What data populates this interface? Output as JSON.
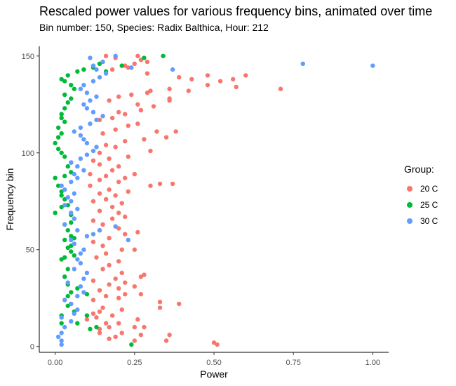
{
  "chart_data": {
    "type": "scatter",
    "title": "Rescaled power values for various frequency bins, animated over time",
    "subtitle": "Bin number: 150, Species: Radix Balthica, Hour: 212",
    "xlabel": "Power",
    "ylabel": "Frequency bin",
    "xlim": [
      -0.05,
      1.05
    ],
    "ylim": [
      -3,
      155
    ],
    "xticks": [
      "0.00",
      "0.25",
      "0.50",
      "0.75",
      "1.00"
    ],
    "yticks": [
      "0",
      "50",
      "100",
      "150"
    ],
    "grid": false,
    "legend": {
      "title": "Group:",
      "position": "right"
    },
    "series": [
      {
        "name": "20 C",
        "color": "#F8766D",
        "points": [
          [
            0.51,
            1
          ],
          [
            0.5,
            2
          ],
          [
            0.25,
            3
          ],
          [
            0.35,
            3
          ],
          [
            0.17,
            4
          ],
          [
            0.19,
            5
          ],
          [
            0.27,
            6
          ],
          [
            0.36,
            6
          ],
          [
            0.14,
            7
          ],
          [
            0.21,
            7
          ],
          [
            0.14,
            9
          ],
          [
            0.17,
            10
          ],
          [
            0.25,
            10
          ],
          [
            0.28,
            10
          ],
          [
            0.16,
            12
          ],
          [
            0.2,
            12
          ],
          [
            0.1,
            14
          ],
          [
            0.26,
            14
          ],
          [
            0.13,
            15
          ],
          [
            0.18,
            16
          ],
          [
            0.12,
            17
          ],
          [
            0.14,
            18
          ],
          [
            0.21,
            19
          ],
          [
            0.15,
            20
          ],
          [
            0.33,
            20
          ],
          [
            0.39,
            22
          ],
          [
            0.33,
            23
          ],
          [
            0.12,
            24
          ],
          [
            0.2,
            25
          ],
          [
            0.16,
            26
          ],
          [
            0.22,
            27
          ],
          [
            0.27,
            27
          ],
          [
            0.14,
            29
          ],
          [
            0.2,
            30
          ],
          [
            0.25,
            31
          ],
          [
            0.17,
            32
          ],
          [
            0.22,
            33
          ],
          [
            0.12,
            34
          ],
          [
            0.19,
            35
          ],
          [
            0.28,
            37
          ],
          [
            0.21,
            38
          ],
          [
            0.27,
            36
          ],
          [
            0.15,
            40
          ],
          [
            0.17,
            42
          ],
          [
            0.2,
            44
          ],
          [
            0.13,
            46
          ],
          [
            0.16,
            48
          ],
          [
            0.21,
            50
          ],
          [
            0.25,
            50
          ],
          [
            0.15,
            52
          ],
          [
            0.12,
            54
          ],
          [
            0.17,
            56
          ],
          [
            0.22,
            58
          ],
          [
            0.26,
            59
          ],
          [
            0.14,
            60
          ],
          [
            0.2,
            61
          ],
          [
            0.15,
            63
          ],
          [
            0.12,
            65
          ],
          [
            0.18,
            66
          ],
          [
            0.22,
            67
          ],
          [
            0.2,
            69
          ],
          [
            0.14,
            70
          ],
          [
            0.18,
            72
          ],
          [
            0.21,
            74
          ],
          [
            0.12,
            75
          ],
          [
            0.16,
            76
          ],
          [
            0.19,
            78
          ],
          [
            0.14,
            79
          ],
          [
            0.23,
            80
          ],
          [
            0.17,
            81
          ],
          [
            0.11,
            83
          ],
          [
            0.3,
            83
          ],
          [
            0.33,
            84
          ],
          [
            0.37,
            84
          ],
          [
            0.2,
            85
          ],
          [
            0.14,
            86
          ],
          [
            0.22,
            87
          ],
          [
            0.16,
            88
          ],
          [
            0.11,
            89
          ],
          [
            0.25,
            89
          ],
          [
            0.18,
            91
          ],
          [
            0.2,
            93
          ],
          [
            0.14,
            94
          ],
          [
            0.12,
            96
          ],
          [
            0.17,
            97
          ],
          [
            0.23,
            98
          ],
          [
            0.14,
            100
          ],
          [
            0.3,
            101
          ],
          [
            0.19,
            103
          ],
          [
            0.16,
            104
          ],
          [
            0.22,
            106
          ],
          [
            0.28,
            107
          ],
          [
            0.35,
            108
          ],
          [
            0.15,
            110
          ],
          [
            0.32,
            111
          ],
          [
            0.38,
            111
          ],
          [
            0.19,
            112
          ],
          [
            0.23,
            114
          ],
          [
            0.26,
            115
          ],
          [
            0.14,
            117
          ],
          [
            0.18,
            118
          ],
          [
            0.22,
            120
          ],
          [
            0.2,
            121
          ],
          [
            0.27,
            122
          ],
          [
            0.31,
            124
          ],
          [
            0.26,
            125
          ],
          [
            0.17,
            127
          ],
          [
            0.36,
            127
          ],
          [
            0.36,
            128
          ],
          [
            0.2,
            129
          ],
          [
            0.24,
            130
          ],
          [
            0.29,
            131
          ],
          [
            0.3,
            132
          ],
          [
            0.36,
            133
          ],
          [
            0.42,
            132
          ],
          [
            0.57,
            134
          ],
          [
            0.71,
            133
          ],
          [
            0.48,
            135
          ],
          [
            0.52,
            137
          ],
          [
            0.43,
            138
          ],
          [
            0.56,
            138
          ],
          [
            0.39,
            139
          ],
          [
            0.48,
            140
          ],
          [
            0.6,
            140
          ],
          [
            0.29,
            141
          ],
          [
            0.18,
            143
          ],
          [
            0.22,
            145
          ],
          [
            0.25,
            146
          ],
          [
            0.27,
            148
          ],
          [
            0.19,
            149
          ],
          [
            0.16,
            150
          ],
          [
            0.26,
            150
          ],
          [
            0.29,
            147
          ],
          [
            0.23,
            144
          ]
        ]
      },
      {
        "name": "25 C",
        "color": "#00BA38",
        "points": [
          [
            0.24,
            1
          ],
          [
            0.02,
            12
          ],
          [
            0.11,
            9
          ],
          [
            0.13,
            10
          ],
          [
            0.07,
            12
          ],
          [
            0.02,
            16
          ],
          [
            0.06,
            18
          ],
          [
            0.1,
            16
          ],
          [
            0.04,
            21
          ],
          [
            0.05,
            22
          ],
          [
            0.04,
            26
          ],
          [
            0.1,
            27
          ],
          [
            0.05,
            28
          ],
          [
            0.07,
            30
          ],
          [
            0.04,
            32
          ],
          [
            0.03,
            36
          ],
          [
            0.04,
            40
          ],
          [
            0.02,
            45
          ],
          [
            0.03,
            46
          ],
          [
            0.06,
            47
          ],
          [
            0.05,
            49
          ],
          [
            0.04,
            51
          ],
          [
            0.05,
            52
          ],
          [
            0.03,
            55
          ],
          [
            0.06,
            56
          ],
          [
            0.05,
            57
          ],
          [
            0.04,
            60
          ],
          [
            0.03,
            63
          ],
          [
            0.05,
            64
          ],
          [
            0.06,
            66
          ],
          [
            0.05,
            68
          ],
          [
            0.0,
            69
          ],
          [
            0.02,
            72
          ],
          [
            0.04,
            73
          ],
          [
            0.03,
            76
          ],
          [
            0.02,
            78
          ],
          [
            0.02,
            80
          ],
          [
            0.01,
            83
          ],
          [
            0.0,
            87
          ],
          [
            0.03,
            88
          ],
          [
            0.05,
            90
          ],
          [
            0.04,
            93
          ],
          [
            0.05,
            95
          ],
          [
            0.03,
            98
          ],
          [
            0.02,
            100
          ],
          [
            0.01,
            102
          ],
          [
            0.0,
            105
          ],
          [
            0.01,
            108
          ],
          [
            0.02,
            110
          ],
          [
            0.01,
            113
          ],
          [
            0.03,
            116
          ],
          [
            0.02,
            118
          ],
          [
            0.02,
            120
          ],
          [
            0.03,
            123
          ],
          [
            0.04,
            126
          ],
          [
            0.05,
            128
          ],
          [
            0.03,
            130
          ],
          [
            0.06,
            133
          ],
          [
            0.05,
            135
          ],
          [
            0.03,
            137
          ],
          [
            0.02,
            138
          ],
          [
            0.04,
            140
          ],
          [
            0.07,
            142
          ],
          [
            0.09,
            143
          ],
          [
            0.12,
            144
          ],
          [
            0.14,
            146
          ],
          [
            0.16,
            142
          ],
          [
            0.21,
            145
          ],
          [
            0.34,
            150
          ],
          [
            0.28,
            149
          ]
        ]
      },
      {
        "name": "30 C",
        "color": "#619CFF",
        "points": [
          [
            0.02,
            1
          ],
          [
            0.02,
            3
          ],
          [
            0.01,
            5
          ],
          [
            0.02,
            7
          ],
          [
            0.03,
            10
          ],
          [
            0.05,
            13
          ],
          [
            0.02,
            15
          ],
          [
            0.06,
            17
          ],
          [
            0.07,
            19
          ],
          [
            0.05,
            22
          ],
          [
            0.03,
            24
          ],
          [
            0.07,
            26
          ],
          [
            0.09,
            28
          ],
          [
            0.08,
            31
          ],
          [
            0.04,
            33
          ],
          [
            0.09,
            35
          ],
          [
            0.1,
            38
          ],
          [
            0.06,
            40
          ],
          [
            0.08,
            43
          ],
          [
            0.07,
            45
          ],
          [
            0.08,
            48
          ],
          [
            0.09,
            50
          ],
          [
            0.06,
            53
          ],
          [
            0.05,
            55
          ],
          [
            0.1,
            57
          ],
          [
            0.12,
            58
          ],
          [
            0.07,
            60
          ],
          [
            0.14,
            60
          ],
          [
            0.19,
            62
          ],
          [
            0.23,
            55
          ],
          [
            0.03,
            63
          ],
          [
            0.06,
            66
          ],
          [
            0.05,
            69
          ],
          [
            0.07,
            71
          ],
          [
            0.03,
            73
          ],
          [
            0.05,
            75
          ],
          [
            0.04,
            77
          ],
          [
            0.06,
            79
          ],
          [
            0.03,
            81
          ],
          [
            0.02,
            83
          ],
          [
            0.05,
            85
          ],
          [
            0.07,
            87
          ],
          [
            0.06,
            89
          ],
          [
            0.09,
            91
          ],
          [
            0.07,
            93
          ],
          [
            0.05,
            95
          ],
          [
            0.08,
            97
          ],
          [
            0.1,
            99
          ],
          [
            0.12,
            101
          ],
          [
            0.13,
            103
          ],
          [
            0.1,
            105
          ],
          [
            0.09,
            107
          ],
          [
            0.08,
            109
          ],
          [
            0.06,
            111
          ],
          [
            0.08,
            113
          ],
          [
            0.11,
            115
          ],
          [
            0.13,
            117
          ],
          [
            0.15,
            119
          ],
          [
            0.12,
            121
          ],
          [
            0.1,
            123
          ],
          [
            0.09,
            125
          ],
          [
            0.11,
            127
          ],
          [
            0.13,
            129
          ],
          [
            0.1,
            131
          ],
          [
            0.08,
            133
          ],
          [
            0.09,
            135
          ],
          [
            0.12,
            137
          ],
          [
            0.14,
            139
          ],
          [
            0.16,
            141
          ],
          [
            0.13,
            143
          ],
          [
            0.12,
            145
          ],
          [
            0.15,
            147
          ],
          [
            0.11,
            149
          ],
          [
            0.19,
            150
          ],
          [
            0.24,
            144
          ],
          [
            0.37,
            143
          ],
          [
            0.78,
            146
          ],
          [
            1.0,
            145
          ]
        ]
      }
    ]
  }
}
